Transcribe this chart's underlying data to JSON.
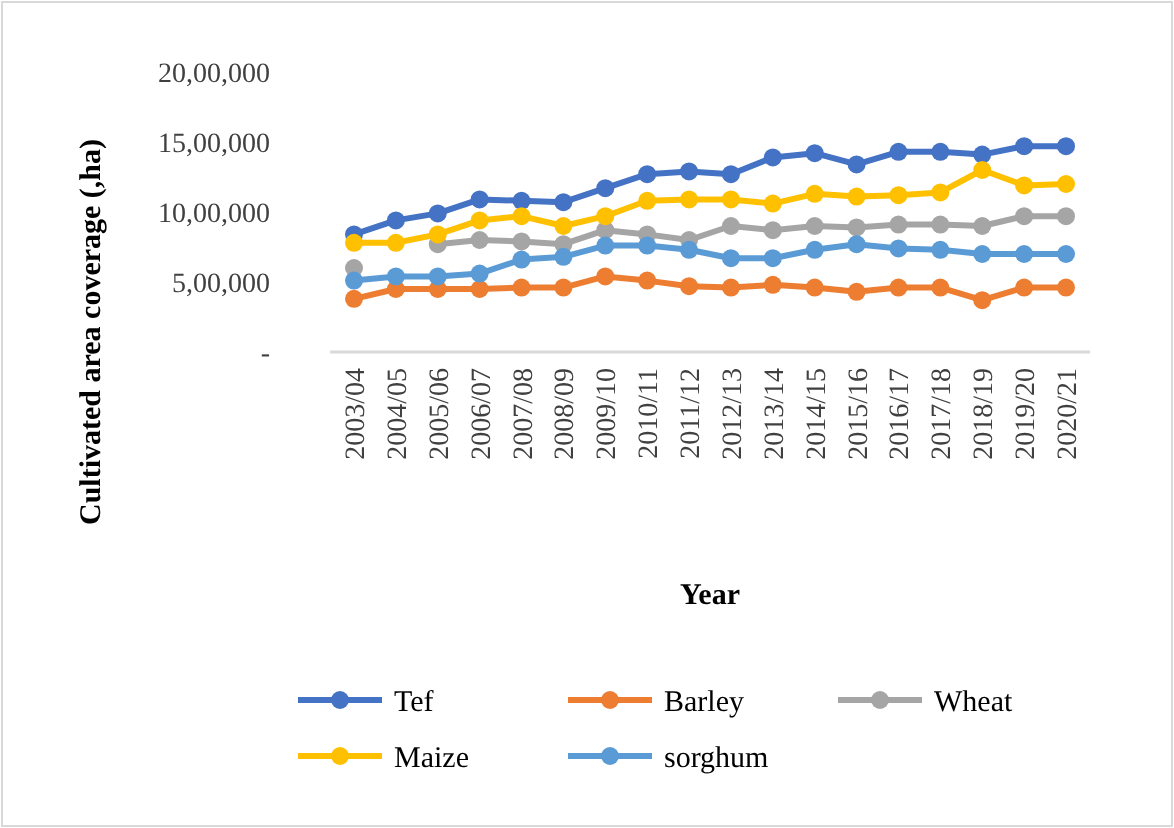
{
  "chart_data": {
    "type": "line",
    "xlabel": "Year",
    "ylabel": "Cultivated area coverage (,ha)",
    "categories": [
      "2003/04",
      "2004/05",
      "2005/06",
      "2006/07",
      "2007/08",
      "2008/09",
      "2009/10",
      "2010/11",
      "2011/12",
      "2012/13",
      "2013/14",
      "2014/15",
      "2015/16",
      "2016/17",
      "2017/18",
      "2018/19",
      "2019/20",
      "2020/21"
    ],
    "series": [
      {
        "name": "Tef",
        "color": "#4472c4",
        "values": [
          840000,
          940000,
          990000,
          1090000,
          1080000,
          1070000,
          1170000,
          1270000,
          1290000,
          1270000,
          1390000,
          1420000,
          1340000,
          1430000,
          1430000,
          1410000,
          1470000,
          1470000
        ]
      },
      {
        "name": "Barley",
        "color": "#ed7d31",
        "values": [
          380000,
          450000,
          450000,
          450000,
          460000,
          460000,
          540000,
          510000,
          470000,
          460000,
          480000,
          460000,
          430000,
          460000,
          460000,
          370000,
          460000,
          460000
        ]
      },
      {
        "name": "Wheat",
        "color": "#a5a5a5",
        "values": [
          600000,
          null,
          770000,
          800000,
          790000,
          770000,
          870000,
          840000,
          800000,
          900000,
          870000,
          900000,
          890000,
          910000,
          910000,
          900000,
          970000,
          970000
        ]
      },
      {
        "name": "Maize",
        "color": "#ffc000",
        "values": [
          780000,
          780000,
          840000,
          940000,
          970000,
          900000,
          970000,
          1080000,
          1090000,
          1090000,
          1060000,
          1130000,
          1110000,
          1120000,
          1140000,
          1300000,
          1190000,
          1200000
        ]
      },
      {
        "name": "sorghum",
        "color": "#5b9bd5",
        "values": [
          510000,
          540000,
          540000,
          560000,
          660000,
          680000,
          760000,
          760000,
          730000,
          670000,
          670000,
          730000,
          770000,
          740000,
          730000,
          700000,
          700000,
          700000
        ]
      }
    ],
    "ylim": [
      0,
      2000000
    ],
    "yticks": [
      {
        "value": 0,
        "label": "-"
      },
      {
        "value": 500000,
        "label": "5,00,000"
      },
      {
        "value": 1000000,
        "label": "10,00,000"
      },
      {
        "value": 1500000,
        "label": "15,00,000"
      },
      {
        "value": 2000000,
        "label": "20,00,000"
      }
    ],
    "legend": "bottom",
    "marker": "circle",
    "line_style": "solid"
  }
}
